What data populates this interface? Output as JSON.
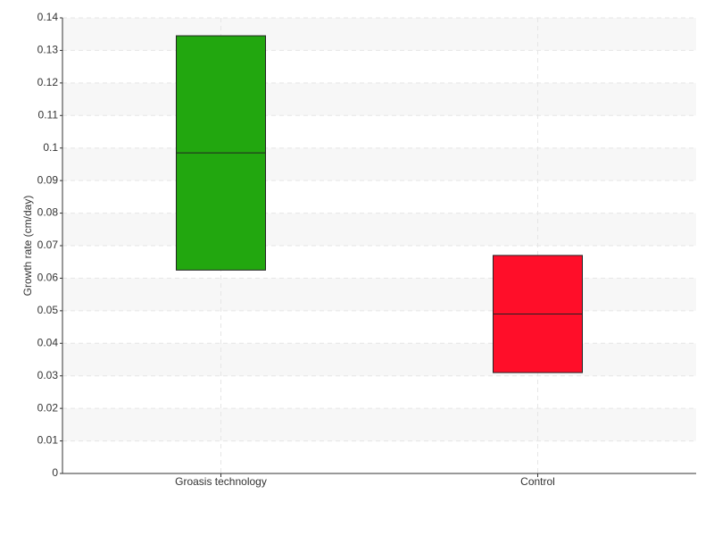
{
  "chart_data": {
    "type": "box",
    "y_label": "Growth rate (cm/day)",
    "categories": [
      "Groasis technology",
      "Control"
    ],
    "low": [
      0.0625,
      0.031
    ],
    "median": [
      0.0985,
      0.049
    ],
    "high": [
      0.1345,
      0.067
    ],
    "colors": [
      "#22a70f",
      "#ff0e29"
    ],
    "ylim": [
      0,
      0.14
    ],
    "yticks": [
      0,
      0.01,
      0.02,
      0.03,
      0.04,
      0.05,
      0.06,
      0.07,
      0.08,
      0.09,
      0.1,
      0.11,
      0.12,
      0.13,
      0.14
    ],
    "grid": true
  }
}
